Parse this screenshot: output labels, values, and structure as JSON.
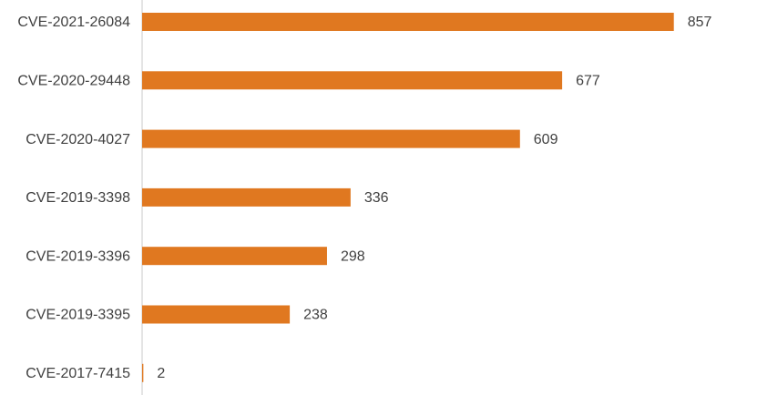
{
  "chart_data": {
    "type": "barh",
    "categories": [
      "CVE-2021-26084",
      "CVE-2020-29448",
      "CVE-2020-4027",
      "CVE-2019-3398",
      "CVE-2019-3396",
      "CVE-2019-3395",
      "CVE-2017-7415"
    ],
    "values": [
      857,
      677,
      609,
      336,
      298,
      238,
      2
    ],
    "color": "#e07820",
    "xlim": [
      0,
      900
    ]
  }
}
